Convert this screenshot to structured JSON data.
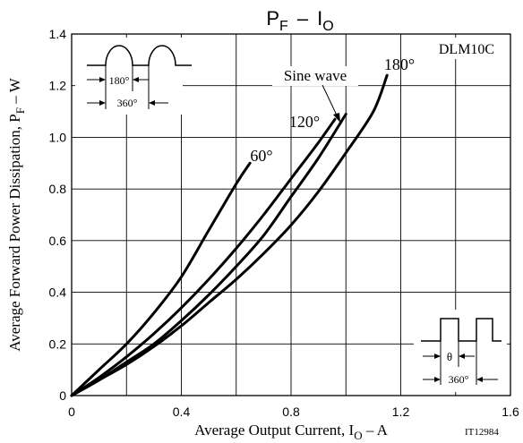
{
  "chart_data": {
    "type": "line",
    "title": {
      "main": "P",
      "main_sub": "F",
      "dash": "–",
      "second": "I",
      "second_sub": "O"
    },
    "xlabel": {
      "pre": "Average Output Current, I",
      "sub": "O",
      "post": " – A"
    },
    "ylabel": {
      "pre": "Average Forward Power Dissipation, P",
      "sub": "F",
      "post": " – W"
    },
    "xlim": [
      0,
      1.6
    ],
    "ylim": [
      0,
      1.4
    ],
    "x_ticks": [
      "0",
      "0.4",
      "0.8",
      "1.2",
      "1.6"
    ],
    "y_ticks": [
      "0",
      "0.2",
      "0.4",
      "0.6",
      "0.8",
      "1.0",
      "1.2",
      "1.4"
    ],
    "grid": true,
    "part_number": "DLM10C",
    "figure_code": "IT12984",
    "series": [
      {
        "name": "60°",
        "x": [
          0,
          0.1,
          0.2,
          0.3,
          0.4,
          0.5,
          0.6,
          0.65
        ],
        "y": [
          0,
          0.1,
          0.2,
          0.32,
          0.46,
          0.64,
          0.82,
          0.9
        ]
      },
      {
        "name": "120°",
        "x": [
          0,
          0.1,
          0.2,
          0.3,
          0.4,
          0.5,
          0.6,
          0.7,
          0.8,
          0.9,
          0.96
        ],
        "y": [
          0,
          0.07,
          0.15,
          0.24,
          0.34,
          0.45,
          0.57,
          0.7,
          0.84,
          0.98,
          1.07
        ]
      },
      {
        "name": "Sine wave",
        "x": [
          0,
          0.1,
          0.2,
          0.3,
          0.4,
          0.5,
          0.6,
          0.7,
          0.8,
          0.9,
          1.0
        ],
        "y": [
          0,
          0.06,
          0.13,
          0.2,
          0.29,
          0.39,
          0.5,
          0.62,
          0.77,
          0.92,
          1.09
        ]
      },
      {
        "name": "180°",
        "x": [
          0,
          0.1,
          0.2,
          0.3,
          0.4,
          0.5,
          0.6,
          0.7,
          0.8,
          0.9,
          1.0,
          1.1,
          1.15
        ],
        "y": [
          0,
          0.06,
          0.12,
          0.19,
          0.27,
          0.36,
          0.45,
          0.55,
          0.66,
          0.79,
          0.94,
          1.1,
          1.24
        ]
      }
    ],
    "curve_labels": [
      {
        "series": "60°",
        "text": "60°"
      },
      {
        "series": "120°",
        "text": "120°"
      },
      {
        "series": "Sine wave",
        "text": "Sine wave"
      },
      {
        "series": "180°",
        "text": "180°"
      }
    ],
    "inset_sine": {
      "angle_label": "180°",
      "period_label": "360°"
    },
    "inset_square": {
      "angle_label": "θ",
      "period_label": "360°"
    }
  }
}
